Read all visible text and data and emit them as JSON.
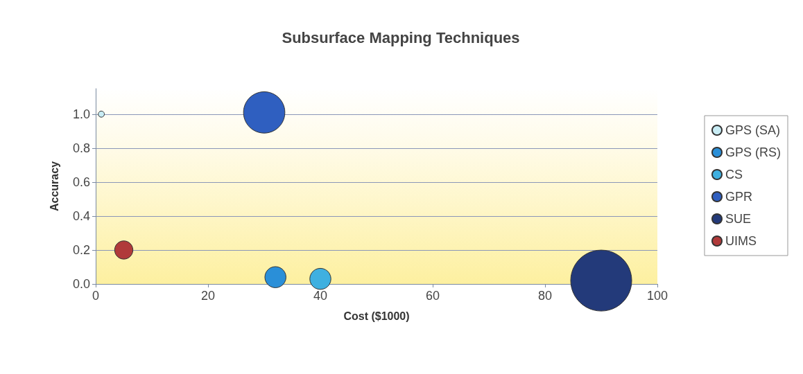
{
  "chart_data": {
    "type": "bubble",
    "title": "Subsurface Mapping Techniques",
    "xlabel": "Cost ($1000)",
    "ylabel": "Accuracy",
    "xlim": [
      0,
      100
    ],
    "xticks": [
      0,
      20,
      40,
      60,
      80,
      100
    ],
    "ylim": [
      0,
      1.15
    ],
    "yticks": [
      {
        "value": 0,
        "label": "0.0"
      },
      {
        "value": 0.2,
        "label": "0.2"
      },
      {
        "value": 0.4,
        "label": "0.4"
      },
      {
        "value": 0.6,
        "label": "0.6"
      },
      {
        "value": 0.8,
        "label": "0.8"
      },
      {
        "value": 1,
        "label": "1.0"
      }
    ],
    "grid": "y",
    "legend": "right",
    "marker": "circle",
    "series": [
      {
        "name": "GPS (SA)",
        "color": "#c8ecf4",
        "x": [
          1
        ],
        "values": [
          1.0
        ],
        "sizes": [
          0.01
        ]
      },
      {
        "name": "GPS (RS)",
        "color": "#2a8fd8",
        "x": [
          32
        ],
        "values": [
          0.04
        ],
        "sizes": [
          0.12
        ]
      },
      {
        "name": "CS",
        "color": "#3fb0e0",
        "x": [
          40
        ],
        "values": [
          0.03
        ],
        "sizes": [
          0.12
        ]
      },
      {
        "name": "GPR",
        "color": "#2f5fc0",
        "x": [
          30
        ],
        "values": [
          1.01
        ],
        "sizes": [
          0.46
        ]
      },
      {
        "name": "SUE",
        "color": "#233a7a",
        "x": [
          90
        ],
        "values": [
          0.02
        ],
        "sizes": [
          1
        ]
      },
      {
        "name": "UIMS",
        "color": "#b03a3a",
        "x": [
          5
        ],
        "values": [
          0.2
        ],
        "sizes": [
          0.09
        ]
      }
    ]
  }
}
